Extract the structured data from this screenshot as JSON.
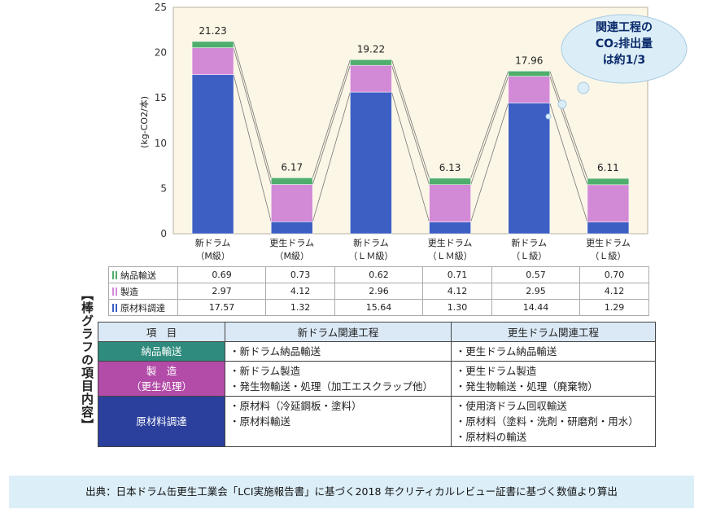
{
  "chart_data": {
    "type": "bar",
    "stacked": true,
    "y_axis_label": "(kg-CO2/本)",
    "y_range": [
      0,
      25
    ],
    "y_ticks": [
      0,
      5,
      10,
      15,
      20,
      25
    ],
    "categories": [
      {
        "line1": "新ドラム",
        "line2": "（M級）"
      },
      {
        "line1": "更生ドラム",
        "line2": "（M級）"
      },
      {
        "line1": "新ドラム",
        "line2": "（ＬＭ級）"
      },
      {
        "line1": "更生ドラム",
        "line2": "（ＬＭ級）"
      },
      {
        "line1": "新ドラム",
        "line2": "（Ｌ級）"
      },
      {
        "line1": "更生ドラム",
        "line2": "（Ｌ級）"
      }
    ],
    "totals": [
      "21.23",
      "6.17",
      "19.22",
      "6.13",
      "17.96",
      "6.11"
    ],
    "series": [
      {
        "name": "原材料調達",
        "color": "#3d5fc4",
        "values": [
          17.57,
          1.32,
          15.64,
          1.3,
          14.44,
          1.29
        ],
        "labels": [
          "17.57",
          "1.32",
          "15.64",
          "1.30",
          "14.44",
          "1.29"
        ]
      },
      {
        "name": "製造",
        "color": "#d38ad6",
        "values": [
          2.97,
          4.12,
          2.96,
          4.12,
          2.95,
          4.12
        ],
        "labels": [
          "2.97",
          "4.12",
          "2.96",
          "4.12",
          "2.95",
          "4.12"
        ]
      },
      {
        "name": "納品輸送",
        "color": "#4fae6d",
        "values": [
          0.69,
          0.73,
          0.62,
          0.71,
          0.57,
          0.7
        ],
        "labels": [
          "0.69",
          "0.73",
          "0.62",
          "0.71",
          "0.57",
          "0.70"
        ]
      }
    ],
    "table_row_order": [
      2,
      1,
      0
    ],
    "plot_background": "#fcf6e6",
    "callout": {
      "line1": "関連工程の",
      "line2": "CO₂排出量",
      "line3": "は約1/3"
    }
  },
  "side_title": "【棒グラフの項目内容】",
  "items_table": {
    "header": {
      "item": "項　目",
      "new": "新ドラム関連工程",
      "renewed": "更生ドラム関連工程"
    },
    "rows": [
      {
        "cat1": "納品輸送",
        "cat2": "",
        "new": [
          "・新ドラム納品輸送"
        ],
        "renewed": [
          "・更生ドラム納品輸送"
        ]
      },
      {
        "cat1": "製　造",
        "cat2": "（更生処理）",
        "new": [
          "・新ドラム製造",
          "・発生物輸送・処理（加工エスクラップ他）"
        ],
        "renewed": [
          "・更生ドラム製造",
          "・発生物輸送・処理（廃棄物）"
        ]
      },
      {
        "cat1": "原材料調達",
        "cat2": "",
        "new": [
          "・原材料（冷延鋼板・塗料）",
          "・原材料輸送"
        ],
        "renewed": [
          "・使用済ドラム回収輸送",
          "・原材料（塗料・洗剤・研磨剤・用水）",
          "・原材料の輸送"
        ]
      }
    ]
  },
  "source_note": "出典：日本ドラム缶更生工業会「LCI実施報告書」に基づく2018 年クリティカルレビュー証書に基づく数値より算出"
}
